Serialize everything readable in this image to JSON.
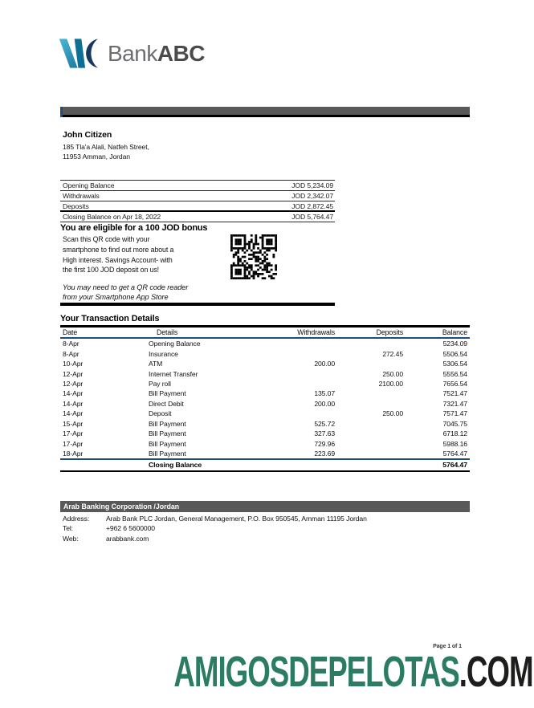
{
  "brand": {
    "name_light": "Bank",
    "name_bold": "ABC"
  },
  "customer": {
    "name": "John Citizen",
    "address_line1": "185 Tla'a Alali, Natfeh Street,",
    "address_line2": "11953 Amman, Jordan"
  },
  "summary": {
    "rows": [
      {
        "label": "Opening Balance",
        "value": "JOD 5,234.09"
      },
      {
        "label": "Withdrawals",
        "value": "JOD 2,342.07"
      },
      {
        "label": "Deposits",
        "value": "JOD 2,872.45"
      }
    ],
    "closing": {
      "label": "Closing  Balance on Apr 18, 2022",
      "value": "JOD 5,764.47"
    }
  },
  "bonus": {
    "heading": "You are eligible for a 100 JOD bonus",
    "body_lines": [
      "Scan this QR code with your",
      "smartphone to find out more about a",
      "High interest. Savings Account- with",
      "the first 100 JOD deposit on us!"
    ],
    "note_lines": [
      "You may need to get a QR code reader",
      "from your Smartphone App Store"
    ]
  },
  "transactions": {
    "heading": "Your Transaction Details",
    "columns": [
      "Date",
      "Details",
      "Withdrawals",
      "Deposits",
      "Balance"
    ],
    "rows": [
      {
        "date": "8-Apr",
        "details": "Opening Balance",
        "withdrawals": "",
        "deposits": "",
        "balance": "5234.09"
      },
      {
        "date": "8-Apr",
        "details": "Insurance",
        "withdrawals": "",
        "deposits": "272.45",
        "balance": "5506.54"
      },
      {
        "date": "10-Apr",
        "details": "ATM",
        "withdrawals": "200.00",
        "deposits": "",
        "balance": "5306.54"
      },
      {
        "date": "12-Apr",
        "details": "Internet Transfer",
        "withdrawals": "",
        "deposits": "250.00",
        "balance": "5556.54"
      },
      {
        "date": "12-Apr",
        "details": "Pay roll",
        "withdrawals": "",
        "deposits": "2100.00",
        "balance": "7656.54"
      },
      {
        "date": "14-Apr",
        "details": "Bill Payment",
        "withdrawals": "135.07",
        "deposits": "",
        "balance": "7521.47"
      },
      {
        "date": "14-Apr",
        "details": "Direct Debit",
        "withdrawals": "200.00",
        "deposits": "",
        "balance": "7321.47"
      },
      {
        "date": "14-Apr",
        "details": "Deposit",
        "withdrawals": "",
        "deposits": "250.00",
        "balance": "7571.47"
      },
      {
        "date": "15-Apr",
        "details": "Bill Payment",
        "withdrawals": "525.72",
        "deposits": "",
        "balance": "7045.75"
      },
      {
        "date": "17-Apr",
        "details": "Bill Payment",
        "withdrawals": "327.63",
        "deposits": "",
        "balance": "6718.12"
      },
      {
        "date": "17-Apr",
        "details": "Bill Payment",
        "withdrawals": "729.96",
        "deposits": "",
        "balance": "5988.16"
      },
      {
        "date": "18-Apr",
        "details": "Bill Payment",
        "withdrawals": "223.69",
        "deposits": "",
        "balance": "5764.47"
      }
    ],
    "closing": {
      "label": "Closing Balance",
      "balance": "5764.47"
    }
  },
  "footer": {
    "bar": "Arab Banking Corporation /Jordan",
    "rows": [
      {
        "label": "Address:",
        "value": "Arab Bank PLC Jordan, General Management, P.O. Box 950545, Amman 11195 Jordan"
      },
      {
        "label": "Tel:",
        "value": "+962 6 5600000"
      },
      {
        "label": "Web:",
        "value": "arabbank.com"
      }
    ]
  },
  "page_info": "Page 1 of 1",
  "watermark": {
    "main": "AMIGOSDEPELOTAS",
    "suffix": ".COM"
  },
  "colors": {
    "bar_gray": "#595959",
    "table_line_navy": "#1f4e79",
    "logo_teal": "#35a4c3",
    "logo_blue": "#0e7095",
    "logo_navy": "#16395f",
    "watermark_green": "#2b7c63"
  }
}
